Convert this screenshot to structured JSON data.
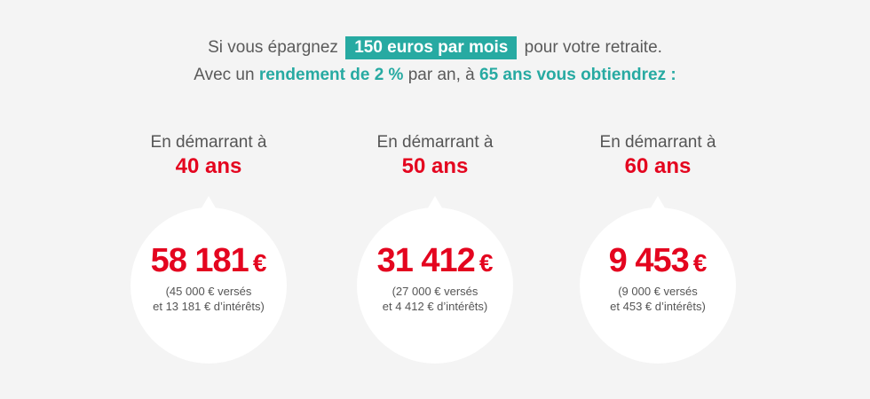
{
  "intro": {
    "line1_before": "Si vous épargnez",
    "line1_highlight": "150 euros par mois",
    "line1_after": "pour votre retraite.",
    "line2_part1": "Avec un",
    "line2_highlight1": "rendement de 2 %",
    "line2_part2": "par an, à",
    "line2_highlight2": "65 ans vous obtiendrez :"
  },
  "scenarios": [
    {
      "start_label": "En démarrant à",
      "age": "40 ans",
      "amount": "58 181",
      "currency": "€",
      "detail_line1": "(45 000 € versés",
      "detail_line2": "et 13 181 € d’intérêts)"
    },
    {
      "start_label": "En démarrant à",
      "age": "50 ans",
      "amount": "31 412",
      "currency": "€",
      "detail_line1": "(27 000 € versés",
      "detail_line2": "et 4 412 € d’intérêts)"
    },
    {
      "start_label": "En démarrant à",
      "age": "60 ans",
      "amount": "9 453",
      "currency": "€",
      "detail_line1": "(9 000 € versés",
      "detail_line2": "et 453 € d’intérêts)"
    }
  ],
  "colors": {
    "background": "#f4f4f4",
    "accent_teal": "#27aaa2",
    "accent_red": "#e4051f",
    "bubble": "#ffffff"
  }
}
